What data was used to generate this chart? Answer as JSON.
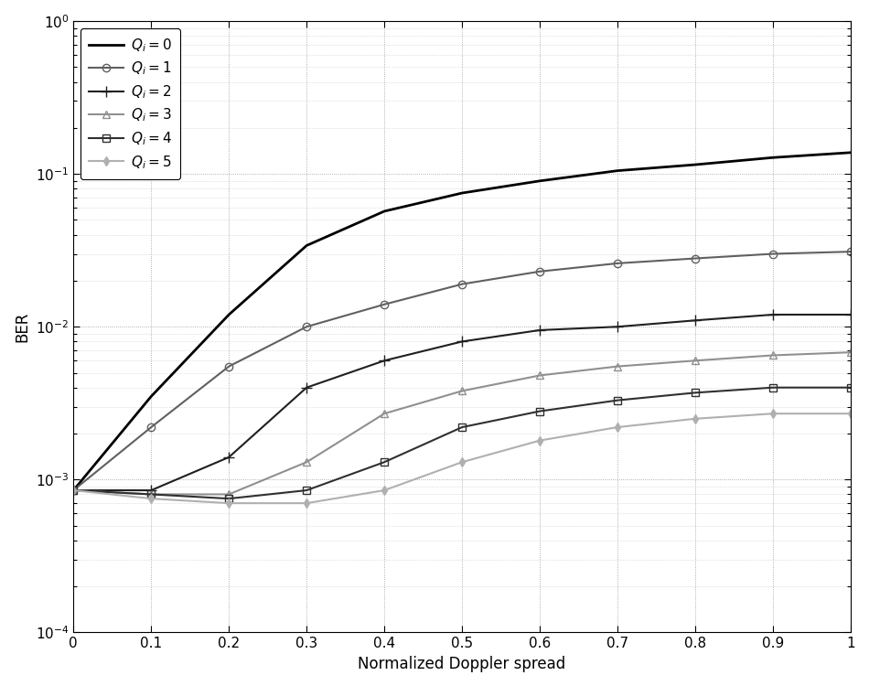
{
  "x": [
    0,
    0.1,
    0.2,
    0.3,
    0.4,
    0.5,
    0.6,
    0.7,
    0.8,
    0.9,
    1.0
  ],
  "series": [
    {
      "label": "Q  = 0",
      "color": "#000000",
      "linewidth": 2.0,
      "linestyle": "-",
      "marker": null,
      "markersize": 0,
      "markerfacecolor": "none",
      "y": [
        0.00085,
        0.0035,
        0.012,
        0.034,
        0.057,
        0.075,
        0.09,
        0.105,
        0.115,
        0.128,
        0.138
      ]
    },
    {
      "label": "Q  = 1",
      "color": "#606060",
      "linewidth": 1.5,
      "linestyle": "-",
      "marker": "o",
      "markersize": 6,
      "markerfacecolor": "none",
      "y": [
        0.00085,
        0.0022,
        0.0055,
        0.01,
        0.014,
        0.019,
        0.023,
        0.026,
        0.028,
        0.03,
        0.031
      ]
    },
    {
      "label": "Q  = 2",
      "color": "#202020",
      "linewidth": 1.5,
      "linestyle": "-",
      "marker": "+",
      "markersize": 8,
      "markerfacecolor": "#202020",
      "y": [
        0.00085,
        0.00085,
        0.0014,
        0.004,
        0.006,
        0.008,
        0.0095,
        0.01,
        0.011,
        0.012,
        0.012
      ]
    },
    {
      "label": "Q  = 3",
      "color": "#909090",
      "linewidth": 1.5,
      "linestyle": "-",
      "marker": "^",
      "markersize": 6,
      "markerfacecolor": "none",
      "y": [
        0.00085,
        0.0008,
        0.0008,
        0.0013,
        0.0027,
        0.0038,
        0.0048,
        0.0055,
        0.006,
        0.0065,
        0.0068
      ]
    },
    {
      "label": "Q  = 4",
      "color": "#303030",
      "linewidth": 1.5,
      "linestyle": "-",
      "marker": "s",
      "markersize": 6,
      "markerfacecolor": "none",
      "y": [
        0.00085,
        0.0008,
        0.00075,
        0.00085,
        0.0013,
        0.0022,
        0.0028,
        0.0033,
        0.0037,
        0.004,
        0.004
      ]
    },
    {
      "label": "Q  = 5",
      "color": "#b0b0b0",
      "linewidth": 1.5,
      "linestyle": "-",
      "marker": "d",
      "markersize": 5,
      "markerfacecolor": "#b0b0b0",
      "y": [
        0.00085,
        0.00075,
        0.0007,
        0.0007,
        0.00085,
        0.0013,
        0.0018,
        0.0022,
        0.0025,
        0.0027,
        0.0027
      ]
    }
  ],
  "xlabel": "Normalized Doppler spread",
  "ylabel": "BER",
  "xlim": [
    0,
    1.0
  ],
  "ylim": [
    0.0001,
    1.0
  ],
  "xticks": [
    0,
    0.1,
    0.2,
    0.3,
    0.4,
    0.5,
    0.6,
    0.7,
    0.8,
    0.9,
    1
  ],
  "xtick_labels": [
    "0",
    "0.1",
    "0.2",
    "0.3",
    "0.4",
    "0.5",
    "0.6",
    "0.7",
    "0.8",
    "0.9",
    "1"
  ],
  "background_color": "#ffffff",
  "figure_width": 9.5,
  "figure_height": 7.5
}
